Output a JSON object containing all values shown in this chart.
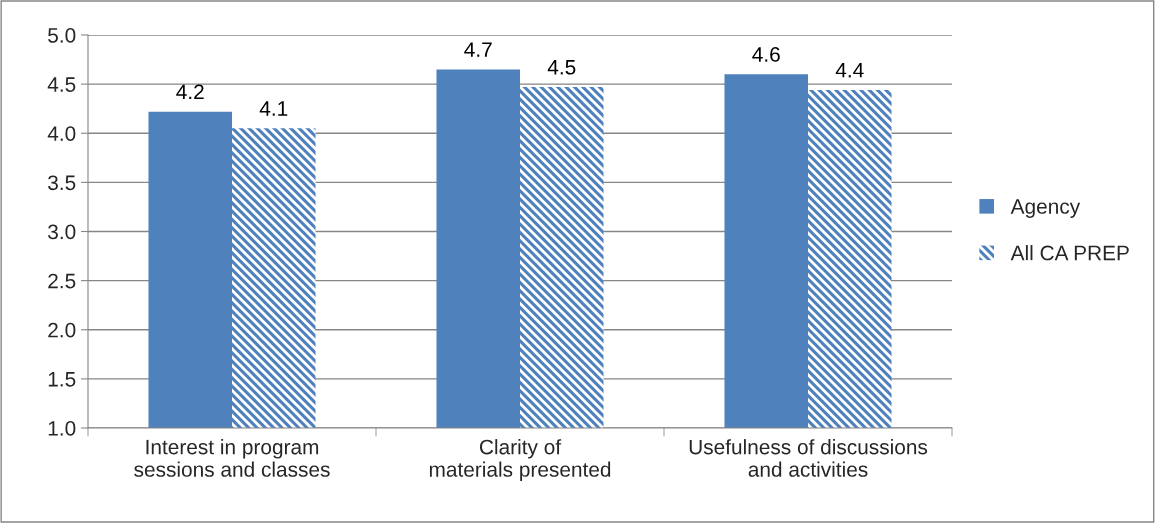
{
  "chart_data": {
    "type": "bar",
    "categories": [
      "Interest in program sessions and classes",
      "Clarity of materials presented",
      "Usefulness of discussions and activities"
    ],
    "series": [
      {
        "name": "Agency",
        "color": "#4f81bd",
        "values": [
          4.22,
          4.65,
          4.6
        ],
        "value_labels": [
          "4.2",
          "4.7",
          "4.6"
        ]
      },
      {
        "name": "All CA PREP",
        "color": "#4f81bd",
        "values": [
          4.05,
          4.47,
          4.44
        ],
        "value_labels": [
          "4.1",
          "4.5",
          "4.4"
        ]
      }
    ],
    "ylim": [
      1,
      5
    ],
    "yticks": [
      {
        "value": 1,
        "label": "1.0"
      },
      {
        "value": 1.5,
        "label": "1.5"
      },
      {
        "value": 2,
        "label": "2.0"
      },
      {
        "value": 2.5,
        "label": "2.5"
      },
      {
        "value": 3,
        "label": "3.0"
      },
      {
        "value": 3.5,
        "label": "3.5"
      },
      {
        "value": 4,
        "label": "4.0"
      },
      {
        "value": 4.5,
        "label": "4.5"
      },
      {
        "value": 5,
        "label": "5.0"
      }
    ],
    "grid": "y",
    "legend": "right"
  }
}
